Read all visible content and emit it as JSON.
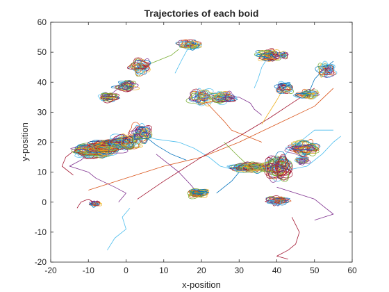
{
  "chart_data": {
    "type": "line",
    "title": "Trajectories of each boid",
    "xlabel": "x-position",
    "ylabel": "y-position",
    "xlim": [
      -20,
      60
    ],
    "ylim": [
      -20,
      60
    ],
    "xticks": [
      -20,
      -10,
      0,
      10,
      20,
      30,
      40,
      50,
      60
    ],
    "yticks": [
      -20,
      -10,
      0,
      10,
      20,
      30,
      40,
      50,
      60
    ],
    "grid": false,
    "legend": "none",
    "colors": [
      "#0072BD",
      "#D95319",
      "#EDB120",
      "#7E2F8E",
      "#77AC30",
      "#4DBEEE",
      "#A2142F"
    ],
    "clusters": [
      {
        "x": -9,
        "y": 17,
        "rx": 5,
        "ry": 2.5,
        "loops": 40
      },
      {
        "x": -5,
        "y": 18.5,
        "rx": 5,
        "ry": 2.5,
        "loops": 40
      },
      {
        "x": 0,
        "y": 20,
        "rx": 4,
        "ry": 2.5,
        "loops": 30
      },
      {
        "x": 4,
        "y": 23,
        "rx": 3,
        "ry": 3,
        "loops": 25
      },
      {
        "x": -5,
        "y": 35,
        "rx": 3,
        "ry": 1.5,
        "loops": 22
      },
      {
        "x": 0,
        "y": 39,
        "rx": 3,
        "ry": 2,
        "loops": 22
      },
      {
        "x": 4,
        "y": 45,
        "rx": 3,
        "ry": 2.5,
        "loops": 22
      },
      {
        "x": 17,
        "y": 52.5,
        "rx": 3,
        "ry": 1.5,
        "loops": 25
      },
      {
        "x": 20,
        "y": 35,
        "rx": 3.5,
        "ry": 2.5,
        "loops": 25
      },
      {
        "x": 26,
        "y": 35,
        "rx": 3.5,
        "ry": 2,
        "loops": 25
      },
      {
        "x": 38,
        "y": 49,
        "rx": 3,
        "ry": 2,
        "loops": 25
      },
      {
        "x": 41.5,
        "y": 49,
        "rx": 1.5,
        "ry": 1.2,
        "loops": 15
      },
      {
        "x": 42,
        "y": 38.5,
        "rx": 2.5,
        "ry": 2,
        "loops": 20
      },
      {
        "x": 48,
        "y": 36,
        "rx": 3,
        "ry": 1.5,
        "loops": 20
      },
      {
        "x": 53,
        "y": 44,
        "rx": 2.5,
        "ry": 2.5,
        "loops": 20
      },
      {
        "x": 33,
        "y": 11.5,
        "rx": 5,
        "ry": 1.5,
        "loops": 40
      },
      {
        "x": 40,
        "y": 12,
        "rx": 4,
        "ry": 4,
        "loops": 40
      },
      {
        "x": 47,
        "y": 18,
        "rx": 4,
        "ry": 2.5,
        "loops": 30
      },
      {
        "x": 47,
        "y": 14,
        "rx": 2,
        "ry": 1.5,
        "loops": 15
      },
      {
        "x": 40,
        "y": 0.5,
        "rx": 3,
        "ry": 1.5,
        "loops": 25
      },
      {
        "x": 19,
        "y": 3,
        "rx": 3,
        "ry": 1.5,
        "loops": 25
      },
      {
        "x": -8,
        "y": -0.5,
        "rx": 1.5,
        "ry": 1,
        "loops": 15
      }
    ],
    "paths": [
      {
        "c": 3,
        "pts": [
          [
            -9,
            17
          ],
          [
            -12,
            14
          ],
          [
            -15,
            12
          ],
          [
            -10,
            10
          ],
          [
            -8,
            8
          ],
          [
            -3,
            5
          ],
          [
            0,
            3
          ],
          [
            -2,
            0
          ]
        ]
      },
      {
        "c": 5,
        "pts": [
          [
            0,
            20
          ],
          [
            5,
            22
          ],
          [
            8,
            21
          ],
          [
            14,
            20
          ],
          [
            18,
            18
          ],
          [
            22,
            15
          ],
          [
            25,
            12
          ],
          [
            28,
            11
          ]
        ]
      },
      {
        "c": 1,
        "pts": [
          [
            -10,
            4
          ],
          [
            0,
            8
          ],
          [
            10,
            12
          ],
          [
            20,
            15
          ],
          [
            30,
            20
          ],
          [
            40,
            26
          ],
          [
            50,
            32
          ],
          [
            55,
            38
          ]
        ]
      },
      {
        "c": 6,
        "pts": [
          [
            3,
            1
          ],
          [
            10,
            7
          ],
          [
            20,
            15
          ],
          [
            30,
            22
          ],
          [
            38,
            28
          ],
          [
            44,
            33
          ],
          [
            50,
            38
          ]
        ]
      },
      {
        "c": 5,
        "pts": [
          [
            1,
            -2
          ],
          [
            -1,
            -5
          ],
          [
            0,
            -9
          ],
          [
            -3,
            -12
          ],
          [
            -5,
            -16
          ]
        ]
      },
      {
        "c": 6,
        "pts": [
          [
            44,
            -5
          ],
          [
            46,
            -10
          ],
          [
            45,
            -14
          ],
          [
            43,
            -16
          ],
          [
            40,
            -18
          ],
          [
            43,
            -19
          ]
        ]
      },
      {
        "c": 3,
        "pts": [
          [
            40,
            5
          ],
          [
            45,
            3
          ],
          [
            50,
            1
          ],
          [
            53,
            -2
          ],
          [
            55,
            -4
          ],
          [
            50,
            -6
          ]
        ]
      },
      {
        "c": 5,
        "pts": [
          [
            33,
            11
          ],
          [
            40,
            10
          ],
          [
            48,
            12
          ],
          [
            52,
            16
          ],
          [
            55,
            20
          ],
          [
            57,
            22
          ]
        ]
      },
      {
        "c": 0,
        "pts": [
          [
            48,
            35
          ],
          [
            50,
            41
          ],
          [
            53,
            45
          ],
          [
            55,
            47
          ]
        ]
      },
      {
        "c": 3,
        "pts": [
          [
            26,
            35
          ],
          [
            30,
            35
          ],
          [
            33,
            33
          ],
          [
            34,
            31
          ],
          [
            36,
            29
          ]
        ]
      },
      {
        "c": 5,
        "pts": [
          [
            17,
            52.5
          ],
          [
            15,
            48
          ],
          [
            13,
            43
          ]
        ]
      },
      {
        "c": 4,
        "pts": [
          [
            4,
            45
          ],
          [
            8,
            47
          ],
          [
            12,
            49
          ],
          [
            14,
            51
          ]
        ]
      },
      {
        "c": 0,
        "pts": [
          [
            4,
            23
          ],
          [
            8,
            19
          ],
          [
            12,
            16
          ],
          [
            16,
            14
          ]
        ]
      },
      {
        "c": 6,
        "pts": [
          [
            -14,
            17
          ],
          [
            -16,
            15
          ],
          [
            -17,
            12
          ],
          [
            -14,
            9
          ]
        ]
      },
      {
        "c": 3,
        "pts": [
          [
            -5,
            35
          ],
          [
            -3,
            37
          ],
          [
            -1,
            39
          ]
        ]
      },
      {
        "c": 1,
        "pts": [
          [
            20,
            35
          ],
          [
            23,
            31
          ],
          [
            26,
            27
          ],
          [
            28,
            24
          ],
          [
            32,
            22
          ],
          [
            36,
            20
          ]
        ]
      },
      {
        "c": 5,
        "pts": [
          [
            40,
            12
          ],
          [
            43,
            17
          ],
          [
            47,
            21
          ],
          [
            50,
            24
          ],
          [
            55,
            24
          ]
        ]
      },
      {
        "c": 2,
        "pts": [
          [
            42,
            38.5
          ],
          [
            40,
            34
          ],
          [
            38,
            30
          ],
          [
            36,
            26
          ]
        ]
      },
      {
        "c": 3,
        "pts": [
          [
            19,
            3
          ],
          [
            17,
            6
          ],
          [
            14,
            10
          ],
          [
            11,
            13
          ],
          [
            8,
            16
          ]
        ]
      },
      {
        "c": 5,
        "pts": [
          [
            38,
            49
          ],
          [
            36,
            45
          ],
          [
            35,
            41
          ],
          [
            34,
            38
          ]
        ]
      },
      {
        "c": 6,
        "pts": [
          [
            -8,
            -0.5
          ],
          [
            -10,
            1
          ],
          [
            -12,
            0
          ],
          [
            -13,
            -2
          ]
        ]
      },
      {
        "c": 4,
        "pts": [
          [
            26,
            20
          ],
          [
            30,
            15
          ],
          [
            33,
            11.5
          ]
        ]
      },
      {
        "c": 0,
        "pts": [
          [
            30,
            10
          ],
          [
            28,
            7
          ],
          [
            26,
            5
          ],
          [
            24,
            3
          ]
        ]
      }
    ]
  }
}
